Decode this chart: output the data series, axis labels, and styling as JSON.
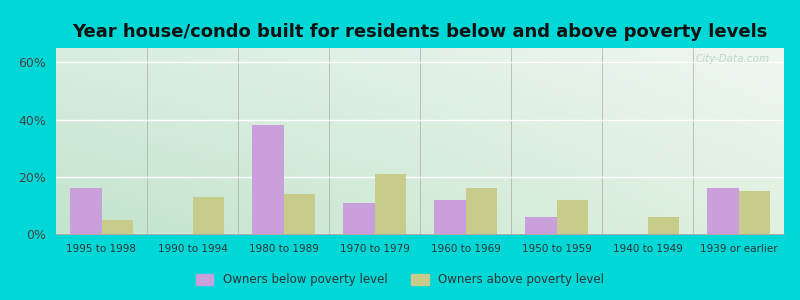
{
  "title": "Year house/condo built for residents below and above poverty levels",
  "categories": [
    "1995 to 1998",
    "1990 to 1994",
    "1980 to 1989",
    "1970 to 1979",
    "1960 to 1969",
    "1950 to 1959",
    "1940 to 1949",
    "1939 or earlier"
  ],
  "below_poverty": [
    16,
    0,
    38,
    11,
    12,
    6,
    0,
    16
  ],
  "above_poverty": [
    5,
    13,
    14,
    21,
    16,
    12,
    6,
    15
  ],
  "below_color": "#c9a0dc",
  "above_color": "#c8cc8a",
  "ylim": [
    0,
    65
  ],
  "yticks": [
    0,
    20,
    40,
    60
  ],
  "ytick_labels": [
    "0%",
    "20%",
    "40%",
    "60%"
  ],
  "bg_color_topleft": "#d8ede0",
  "bg_color_topright": "#f0f4f0",
  "bg_color_bottomleft": "#c8e8d0",
  "bg_color_bottomright": "#e8f4e8",
  "outer_bg": "#00d8d8",
  "title_fontsize": 13,
  "bar_width": 0.35,
  "legend_below_label": "Owners below poverty level",
  "legend_above_label": "Owners above poverty level",
  "watermark": "City-Data.com"
}
